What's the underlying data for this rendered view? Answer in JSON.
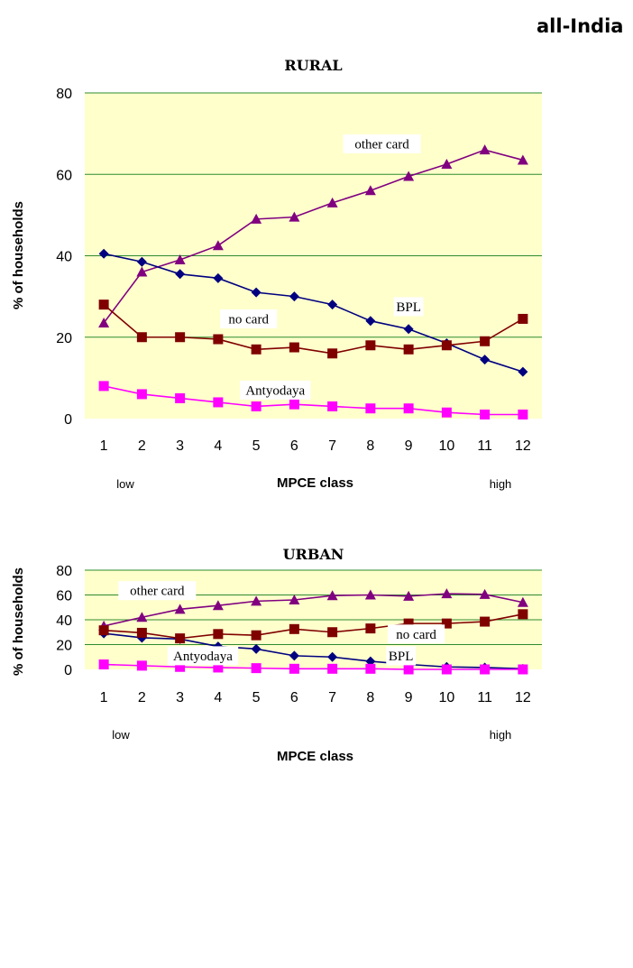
{
  "page": {
    "title": "all-India"
  },
  "chart_data": [
    {
      "type": "line",
      "title": "RURAL",
      "ylabel": "% of households",
      "xlabel": "MPCE class",
      "x_low_label": "low",
      "x_high_label": "high",
      "categories": [
        "1",
        "2",
        "3",
        "4",
        "5",
        "6",
        "7",
        "8",
        "9",
        "10",
        "11",
        "12"
      ],
      "ylim": [
        0,
        80
      ],
      "yticks": [
        0,
        20,
        40,
        60,
        80
      ],
      "grid": true,
      "plot_background": "#ffffcc",
      "series": [
        {
          "name": "other card",
          "color": "#800080",
          "marker": "triangle",
          "values": [
            23.5,
            36,
            39,
            42.5,
            49,
            49.5,
            53,
            56,
            59.5,
            62.5,
            66,
            63.5
          ]
        },
        {
          "name": "BPL",
          "color": "#000080",
          "marker": "diamond",
          "values": [
            40.5,
            38.5,
            35.5,
            34.5,
            31,
            30,
            28,
            24,
            22,
            18.5,
            14.5,
            11.5
          ]
        },
        {
          "name": "no card",
          "color": "#800000",
          "marker": "square",
          "values": [
            28,
            20,
            20,
            19.5,
            17,
            17.5,
            16,
            18,
            17,
            18,
            19,
            24.5
          ]
        },
        {
          "name": "Antyodaya",
          "color": "#ff00ff",
          "marker": "square",
          "values": [
            8,
            6,
            5,
            4,
            3,
            3.5,
            3,
            2.5,
            2.5,
            1.5,
            1,
            1
          ]
        }
      ],
      "annotations": [
        {
          "text": "other card",
          "x": 8.3,
          "y": 67.5
        },
        {
          "text": "BPL",
          "x": 9.0,
          "y": 27.5
        },
        {
          "text": "no card",
          "x": 4.8,
          "y": 24.5
        },
        {
          "text": "Antyodaya",
          "x": 5.5,
          "y": 7.0
        }
      ]
    },
    {
      "type": "line",
      "title": "URBAN",
      "ylabel": "% of households",
      "xlabel": "MPCE class",
      "x_low_label": "low",
      "x_high_label": "high",
      "categories": [
        "1",
        "2",
        "3",
        "4",
        "5",
        "6",
        "7",
        "8",
        "9",
        "10",
        "11",
        "12"
      ],
      "ylim": [
        0,
        80
      ],
      "yticks": [
        0,
        20,
        40,
        60,
        80
      ],
      "grid": true,
      "plot_background": "#ffffcc",
      "series": [
        {
          "name": "other card",
          "color": "#800080",
          "marker": "triangle",
          "values": [
            35,
            42,
            48.5,
            51.5,
            55,
            56,
            59.5,
            60,
            59,
            61,
            60.5,
            54
          ]
        },
        {
          "name": "BPL",
          "color": "#000080",
          "marker": "diamond",
          "values": [
            29,
            25.5,
            24.5,
            18.5,
            16.5,
            11,
            10,
            6.5,
            4,
            2,
            1.5,
            0.5
          ]
        },
        {
          "name": "no card",
          "color": "#800000",
          "marker": "square",
          "values": [
            31.5,
            29.5,
            25,
            28.5,
            27.5,
            32.5,
            30,
            33,
            37,
            37,
            38.5,
            44.5
          ]
        },
        {
          "name": "Antyodaya",
          "color": "#ff00ff",
          "marker": "square",
          "values": [
            4,
            3,
            2,
            1.5,
            1,
            0.5,
            0.5,
            0.5,
            0,
            0,
            0,
            0
          ]
        }
      ],
      "annotations": [
        {
          "text": "other card",
          "x": 2.4,
          "y": 63.5
        },
        {
          "text": "no card",
          "x": 9.2,
          "y": 28.5
        },
        {
          "text": "Antyodaya",
          "x": 3.6,
          "y": 11.0
        },
        {
          "text": "BPL",
          "x": 8.8,
          "y": 11.0
        }
      ]
    }
  ]
}
